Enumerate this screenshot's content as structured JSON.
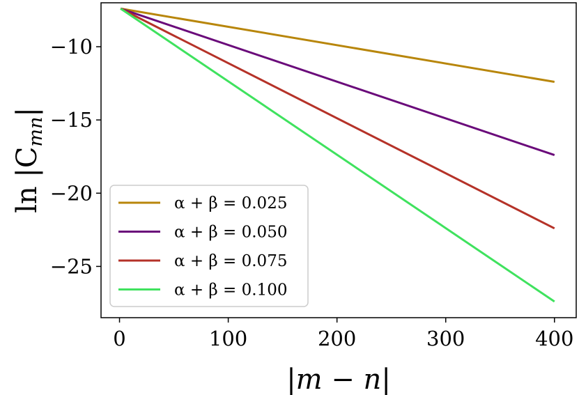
{
  "chart_data": {
    "type": "line",
    "title": "",
    "xlabel": "|m − n|",
    "ylabel": "ln |C",
    "ylabel_subscript": "mn",
    "ylabel_suffix": "|",
    "xlim": [
      -17,
      420
    ],
    "ylim": [
      -28.5,
      -7
    ],
    "x_ticks": [
      0,
      100,
      200,
      300,
      400
    ],
    "x_tick_labels": [
      "0",
      "100",
      "200",
      "300",
      "400"
    ],
    "y_ticks": [
      -10,
      -15,
      -20,
      -25
    ],
    "y_tick_labels": [
      "−10",
      "−15",
      "−20",
      "−25"
    ],
    "grid": false,
    "legend_position": "lower-left",
    "series": [
      {
        "name": "α + β = 0.025",
        "color": "#b8860b",
        "x": [
          1,
          400
        ],
        "y": [
          -7.4,
          -12.4
        ]
      },
      {
        "name": "α + β = 0.050",
        "color": "#6a0a7a",
        "x": [
          1,
          400
        ],
        "y": [
          -7.4,
          -17.4
        ]
      },
      {
        "name": "α + β = 0.075",
        "color": "#b53228",
        "x": [
          1,
          400
        ],
        "y": [
          -7.4,
          -22.4
        ]
      },
      {
        "name": "α + β = 0.100",
        "color": "#3fe25e",
        "x": [
          1,
          400
        ],
        "y": [
          -7.4,
          -27.4
        ]
      }
    ]
  }
}
